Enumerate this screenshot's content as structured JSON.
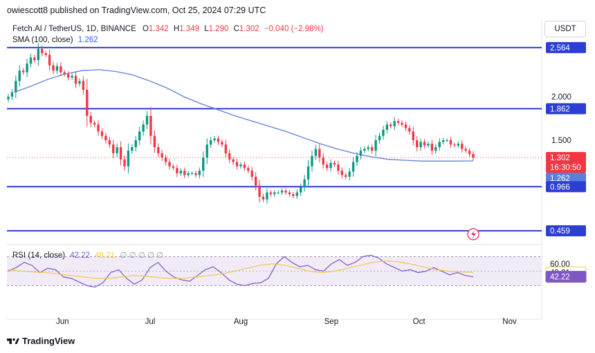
{
  "header": {
    "published_by": "owiescott8 published on TradingView.com, Oct 25, 2024 07:29 UTC",
    "currency_button": "USDT"
  },
  "legend": {
    "symbol": "Fetch.AI / TetherUS, 1D, BINANCE",
    "open_label": "O",
    "open": "1.342",
    "high_label": "H",
    "high": "1.349",
    "low_label": "L",
    "low": "1.290",
    "close_label": "C",
    "close": "1.302",
    "change": "−0.040 (−2.98%)",
    "sma_label": "SMA (100, close)",
    "sma_value": "1.262"
  },
  "rsi_legend": {
    "label": "RSI (14, close)",
    "rsi_value": "42.22",
    "ma_value": "48.21",
    "extras": "∅ ∅ ∅ ∅ ∅"
  },
  "footer": {
    "brand": "TradingView"
  },
  "colors": {
    "up": "#089981",
    "down": "#f23645",
    "sma": "#5b7fd6",
    "hline": "#2d3fd3",
    "rsi": "#7e57c2",
    "rsi_ma": "#f7c744",
    "rsi_band": "#ede7f6"
  },
  "chart_data": {
    "type": "candlestick",
    "price_axis_labels": [
      "2.000",
      "1.500"
    ],
    "price_tags": [
      {
        "text": "2.564",
        "kind": "hline"
      },
      {
        "text": "1.862",
        "kind": "hline"
      },
      {
        "text": "1.302",
        "kind": "last"
      },
      {
        "text": "16:30:50",
        "kind": "countdown"
      },
      {
        "text": "1.262",
        "kind": "sma"
      },
      {
        "text": "0.966",
        "kind": "hline"
      },
      {
        "text": "0.459",
        "kind": "hline"
      }
    ],
    "horizontal_levels": [
      2.564,
      1.862,
      0.966,
      0.459
    ],
    "last_price": 1.302,
    "sma_last": 1.262,
    "x_labels": [
      "Jun",
      "Jul",
      "Aug",
      "Sep",
      "Oct",
      "Nov"
    ],
    "rsi_axis_labels": [
      "60.00"
    ],
    "rsi_tags": [
      {
        "text": "48.21",
        "kind": "ma"
      },
      {
        "text": "42.22",
        "kind": "rsi"
      }
    ],
    "rsi_last": 42.22,
    "rsi_ma_last": 48.21,
    "rsi_band": [
      30,
      70
    ],
    "x_range": [
      "2024-05-13",
      "2024-11-12"
    ],
    "candles_close": [
      2.0,
      2.05,
      2.18,
      2.3,
      2.28,
      2.38,
      2.45,
      2.42,
      2.55,
      2.5,
      2.48,
      2.36,
      2.3,
      2.35,
      2.28,
      2.26,
      2.22,
      2.24,
      2.15,
      2.18,
      2.08,
      1.78,
      1.7,
      1.68,
      1.6,
      1.55,
      1.5,
      1.45,
      1.35,
      1.42,
      1.28,
      1.2,
      1.38,
      1.42,
      1.5,
      1.6,
      1.68,
      1.78,
      1.55,
      1.42,
      1.35,
      1.3,
      1.25,
      1.2,
      1.18,
      1.12,
      1.15,
      1.1,
      1.12,
      1.12,
      1.1,
      1.15,
      1.3,
      1.45,
      1.5,
      1.52,
      1.48,
      1.45,
      1.35,
      1.28,
      1.25,
      1.2,
      1.22,
      1.18,
      1.15,
      1.08,
      0.98,
      0.85,
      0.82,
      0.9,
      0.88,
      0.9,
      0.9,
      0.92,
      0.9,
      0.88,
      0.86,
      0.9,
      0.96,
      1.05,
      1.2,
      1.32,
      1.4,
      1.3,
      1.22,
      1.18,
      1.24,
      1.22,
      1.15,
      1.1,
      1.08,
      1.14,
      1.25,
      1.32,
      1.38,
      1.4,
      1.42,
      1.38,
      1.5,
      1.55,
      1.62,
      1.68,
      1.66,
      1.72,
      1.7,
      1.68,
      1.64,
      1.6,
      1.5,
      1.42,
      1.48,
      1.44,
      1.46,
      1.38,
      1.42,
      1.48,
      1.5,
      1.5,
      1.45,
      1.44,
      1.46,
      1.4,
      1.38,
      1.342,
      1.302
    ],
    "sma": [
      2.05,
      2.12,
      2.2,
      2.26,
      2.3,
      2.31,
      2.29,
      2.25,
      2.18,
      2.1,
      2.0,
      1.92,
      1.85,
      1.78,
      1.72,
      1.66,
      1.6,
      1.53,
      1.46,
      1.4,
      1.35,
      1.31,
      1.28,
      1.27,
      1.26,
      1.26,
      1.26,
      1.262
    ],
    "rsi": [
      50,
      55,
      62,
      58,
      48,
      54,
      52,
      42,
      40,
      35,
      30,
      28,
      34,
      48,
      52,
      40,
      32,
      38,
      55,
      62,
      50,
      42,
      38,
      36,
      44,
      52,
      56,
      48,
      38,
      32,
      30,
      33,
      34,
      40,
      60,
      70,
      62,
      56,
      58,
      52,
      50,
      60,
      66,
      58,
      62,
      70,
      72,
      68,
      60,
      55,
      50,
      52,
      48,
      50,
      55,
      50,
      45,
      48,
      44,
      42.22
    ],
    "rsi_ma": [
      52,
      50,
      49,
      48,
      46,
      44,
      42,
      40,
      40,
      42,
      44,
      43,
      41,
      40,
      40,
      42,
      44,
      46,
      50,
      54,
      58,
      60,
      58,
      54,
      50,
      48,
      50,
      54,
      58,
      62,
      64,
      63,
      60,
      56,
      52,
      50,
      49,
      48.21
    ]
  }
}
